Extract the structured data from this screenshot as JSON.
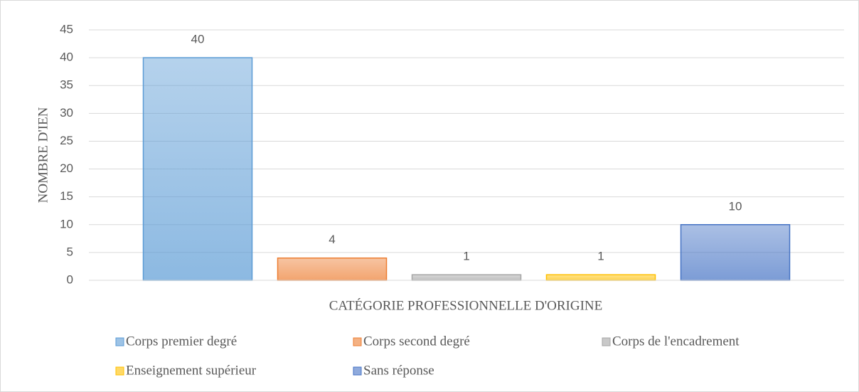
{
  "chart_data": {
    "type": "bar",
    "x_label": "CATÉGORIE PROFESSIONNELLE D'ORIGINE",
    "y_label": "NOMBRE D'IEN",
    "categories": [
      null
    ],
    "series": [
      {
        "name": "Corps premier degré",
        "color": "#5b9bd5",
        "values": [
          40
        ]
      },
      {
        "name": "Corps second degré",
        "color": "#ed7d31",
        "values": [
          4
        ]
      },
      {
        "name": "Corps de l'encadrement",
        "color": "#a5a5a5",
        "values": [
          1
        ]
      },
      {
        "name": "Enseignement supérieur",
        "color": "#ffc000",
        "values": [
          1
        ]
      },
      {
        "name": "Sans réponse",
        "color": "#4472c4",
        "values": [
          10
        ]
      }
    ],
    "ylim": [
      0,
      45
    ],
    "yticks": [
      0,
      5,
      10,
      15,
      20,
      25,
      30,
      35,
      40,
      45
    ],
    "grid": true,
    "legend": "bottom"
  }
}
